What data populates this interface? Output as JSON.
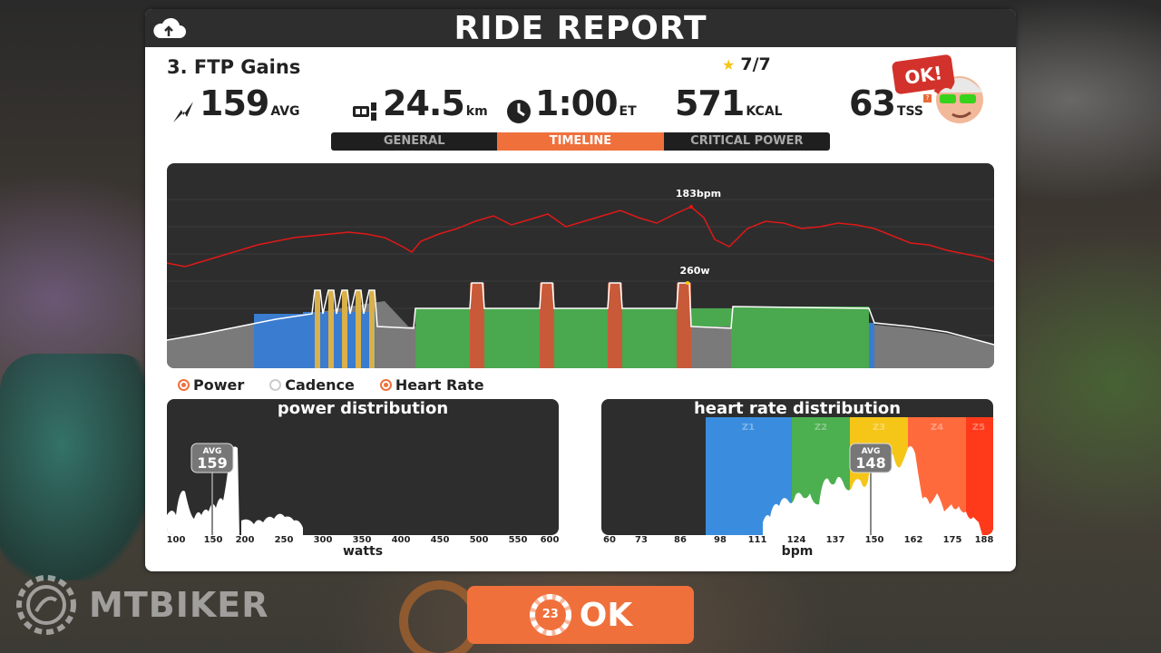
{
  "title": "RIDE REPORT",
  "workout_name": "3. FTP Gains",
  "stars": "7/7",
  "stats": {
    "power": {
      "value": "159",
      "unit": "AVG"
    },
    "distance": {
      "value": "24.5",
      "unit": "km"
    },
    "time": {
      "value": "1:00",
      "unit": "ET"
    },
    "calories": {
      "value": "571",
      "unit": "KCAL"
    },
    "tss": {
      "value": "63",
      "unit": "TSS",
      "help": "?"
    }
  },
  "avatar_bubble": "OK!",
  "tabs": [
    "GENERAL",
    "TIMELINE",
    "CRITICAL POWER"
  ],
  "active_tab": "TIMELINE",
  "timeline": {
    "hr_peak_label": "183bpm",
    "power_peak_label": "260w"
  },
  "legend": {
    "power": "Power",
    "cadence": "Cadence",
    "heart_rate": "Heart Rate"
  },
  "power_distribution": {
    "title": "power distribution",
    "avg_label": "AVG",
    "avg_value": "159",
    "axis_ticks": [
      "100",
      "150",
      "200",
      "250",
      "300",
      "350",
      "400",
      "450",
      "500",
      "550",
      "600"
    ],
    "axis_label": "watts"
  },
  "hr_distribution": {
    "title": "heart rate distribution",
    "avg_label": "AVG",
    "avg_value": "148",
    "zones": [
      "Z1",
      "Z2",
      "Z3",
      "Z4",
      "Z5"
    ],
    "axis_ticks": [
      "60",
      "73",
      "86",
      "98",
      "111",
      "124",
      "137",
      "150",
      "162",
      "175",
      "188"
    ],
    "axis_label": "bpm"
  },
  "ok_button": {
    "label": "OK",
    "badge": "23"
  },
  "watermark": "MTBIKER",
  "colors": {
    "accent": "#f0703c",
    "hr_line": "#e01818",
    "zone1": "#3a8dde",
    "zone2": "#4caf50",
    "zone3": "#f5c518",
    "zone4": "#ff6a3d",
    "zone5": "#ff3a1a",
    "workout_blue": "#3a7ccf",
    "workout_green": "#4aa84e",
    "workout_red": "#c85a3a",
    "workout_yellow": "#d9b04a"
  }
}
